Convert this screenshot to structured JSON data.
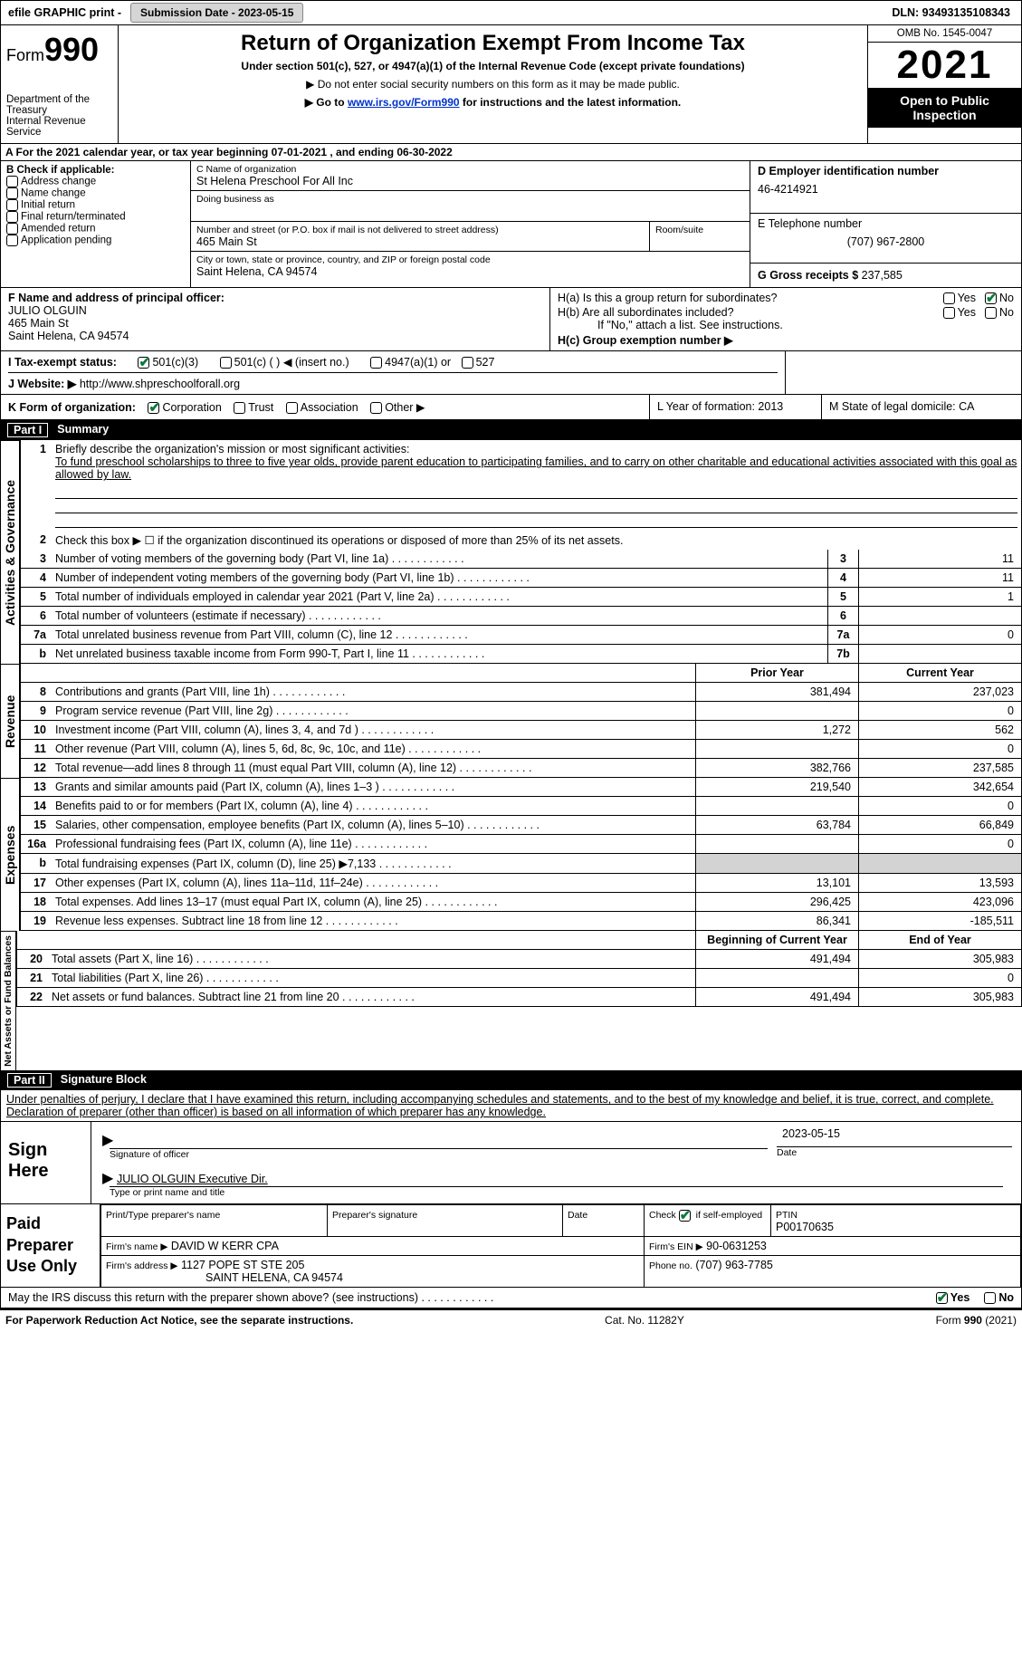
{
  "topbar": {
    "efile": "efile GRAPHIC print -",
    "subdate_label": "Submission Date - 2023-05-15",
    "dln_label": "DLN: 93493135108343"
  },
  "header": {
    "form_word": "Form",
    "form_num": "990",
    "dept": "Department of the Treasury",
    "irs": "Internal Revenue Service",
    "title": "Return of Organization Exempt From Income Tax",
    "sub1": "Under section 501(c), 527, or 4947(a)(1) of the Internal Revenue Code (except private foundations)",
    "sub2": "▶ Do not enter social security numbers on this form as it may be made public.",
    "sub3_pre": "▶ Go to ",
    "sub3_link": "www.irs.gov/Form990",
    "sub3_post": " for instructions and the latest information.",
    "omb": "OMB No. 1545-0047",
    "year": "2021",
    "open": "Open to Public Inspection"
  },
  "sectionA": "A For the 2021 calendar year, or tax year beginning 07-01-2021    , and ending 06-30-2022",
  "colB": {
    "title": "B Check if applicable:",
    "items": [
      "Address change",
      "Name change",
      "Initial return",
      "Final return/terminated",
      "Amended return",
      "Application pending"
    ]
  },
  "colC": {
    "name_lab": "C Name of organization",
    "name": "St Helena Preschool For All Inc",
    "dba_lab": "Doing business as",
    "addr_lab": "Number and street (or P.O. box if mail is not delivered to street address)",
    "room_lab": "Room/suite",
    "addr": "465 Main St",
    "city_lab": "City or town, state or province, country, and ZIP or foreign postal code",
    "city": "Saint Helena, CA  94574"
  },
  "colD": {
    "ein_lab": "D Employer identification number",
    "ein": "46-4214921",
    "tel_lab": "E Telephone number",
    "tel": "(707) 967-2800",
    "gross_lab": "G Gross receipts $",
    "gross": "237,585"
  },
  "rowF": {
    "lab": "F Name and address of principal officer:",
    "name": "JULIO OLGUIN",
    "addr1": "465 Main St",
    "addr2": "Saint Helena, CA  94574"
  },
  "rowH": {
    "ha": "H(a)  Is this a group return for subordinates?",
    "hb": "H(b)  Are all subordinates included?",
    "hb_note": "If \"No,\" attach a list. See instructions.",
    "hc": "H(c)  Group exemption number ▶",
    "yes": "Yes",
    "no": "No"
  },
  "rowI": {
    "lab": "I    Tax-exempt status:",
    "o1": "501(c)(3)",
    "o2": "501(c) (  ) ◀ (insert no.)",
    "o3": "4947(a)(1) or",
    "o4": "527"
  },
  "rowJ": {
    "lab": "J    Website: ▶",
    "url": "http://www.shpreschoolforall.org"
  },
  "rowK": {
    "lab": "K Form of organization:",
    "o1": "Corporation",
    "o2": "Trust",
    "o3": "Association",
    "o4": "Other ▶"
  },
  "rowL": {
    "lab": "L Year of formation: 2013"
  },
  "rowM": {
    "lab": "M State of legal domicile: CA"
  },
  "part1": {
    "num": "Part I",
    "title": "Summary"
  },
  "summary": {
    "l1_lab": "Briefly describe the organization's mission or most significant activities:",
    "l1_text": "To fund preschool scholarships to three to five year olds, provide parent education to participating families, and to carry on other charitable and educational activities associated with this goal as allowed by law.",
    "l2": "Check this box ▶ ☐  if the organization discontinued its operations or disposed of more than 25% of its net assets.",
    "rows_gov": [
      {
        "n": "3",
        "lab": "Number of voting members of the governing body (Part VI, line 1a)",
        "box": "3",
        "v": "11"
      },
      {
        "n": "4",
        "lab": "Number of independent voting members of the governing body (Part VI, line 1b)",
        "box": "4",
        "v": "11"
      },
      {
        "n": "5",
        "lab": "Total number of individuals employed in calendar year 2021 (Part V, line 2a)",
        "box": "5",
        "v": "1"
      },
      {
        "n": "6",
        "lab": "Total number of volunteers (estimate if necessary)",
        "box": "6",
        "v": ""
      },
      {
        "n": "7a",
        "lab": "Total unrelated business revenue from Part VIII, column (C), line 12",
        "box": "7a",
        "v": "0"
      },
      {
        "n": "b",
        "lab": "Net unrelated business taxable income from Form 990-T, Part I, line 11",
        "box": "7b",
        "v": ""
      }
    ],
    "col_prior": "Prior Year",
    "col_current": "Current Year",
    "rev": [
      {
        "n": "8",
        "lab": "Contributions and grants (Part VIII, line 1h)",
        "p": "381,494",
        "c": "237,023"
      },
      {
        "n": "9",
        "lab": "Program service revenue (Part VIII, line 2g)",
        "p": "",
        "c": "0"
      },
      {
        "n": "10",
        "lab": "Investment income (Part VIII, column (A), lines 3, 4, and 7d )",
        "p": "1,272",
        "c": "562"
      },
      {
        "n": "11",
        "lab": "Other revenue (Part VIII, column (A), lines 5, 6d, 8c, 9c, 10c, and 11e)",
        "p": "",
        "c": "0"
      },
      {
        "n": "12",
        "lab": "Total revenue—add lines 8 through 11 (must equal Part VIII, column (A), line 12)",
        "p": "382,766",
        "c": "237,585"
      }
    ],
    "exp": [
      {
        "n": "13",
        "lab": "Grants and similar amounts paid (Part IX, column (A), lines 1–3 )",
        "p": "219,540",
        "c": "342,654"
      },
      {
        "n": "14",
        "lab": "Benefits paid to or for members (Part IX, column (A), line 4)",
        "p": "",
        "c": "0"
      },
      {
        "n": "15",
        "lab": "Salaries, other compensation, employee benefits (Part IX, column (A), lines 5–10)",
        "p": "63,784",
        "c": "66,849"
      },
      {
        "n": "16a",
        "lab": "Professional fundraising fees (Part IX, column (A), line 11e)",
        "p": "",
        "c": "0"
      },
      {
        "n": "b",
        "lab": "Total fundraising expenses (Part IX, column (D), line 25) ▶7,133",
        "p": "GREY",
        "c": "GREY"
      },
      {
        "n": "17",
        "lab": "Other expenses (Part IX, column (A), lines 11a–11d, 11f–24e)",
        "p": "13,101",
        "c": "13,593"
      },
      {
        "n": "18",
        "lab": "Total expenses. Add lines 13–17 (must equal Part IX, column (A), line 25)",
        "p": "296,425",
        "c": "423,096"
      },
      {
        "n": "19",
        "lab": "Revenue less expenses. Subtract line 18 from line 12",
        "p": "86,341",
        "c": "-185,511"
      }
    ],
    "col_begin": "Beginning of Current Year",
    "col_end": "End of Year",
    "net": [
      {
        "n": "20",
        "lab": "Total assets (Part X, line 16)",
        "p": "491,494",
        "c": "305,983"
      },
      {
        "n": "21",
        "lab": "Total liabilities (Part X, line 26)",
        "p": "",
        "c": "0"
      },
      {
        "n": "22",
        "lab": "Net assets or fund balances. Subtract line 21 from line 20",
        "p": "491,494",
        "c": "305,983"
      }
    ]
  },
  "sides": {
    "gov": "Activities & Governance",
    "rev": "Revenue",
    "exp": "Expenses",
    "net": "Net Assets or Fund Balances"
  },
  "part2": {
    "num": "Part II",
    "title": "Signature Block"
  },
  "penalties": "Under penalties of perjury, I declare that I have examined this return, including accompanying schedules and statements, and to the best of my knowledge and belief, it is true, correct, and complete. Declaration of preparer (other than officer) is based on all information of which preparer has any knowledge.",
  "sign": {
    "here": "Sign Here",
    "sig_lab": "Signature of officer",
    "date_lab": "Date",
    "date": "2023-05-15",
    "name": "JULIO OLGUIN  Executive Dir.",
    "name_lab": "Type or print name and title"
  },
  "paid": {
    "title": "Paid Preparer Use Only",
    "h1": "Print/Type preparer's name",
    "h2": "Preparer's signature",
    "h3": "Date",
    "h4_pre": "Check ",
    "h4_post": " if self-employed",
    "h5": "PTIN",
    "ptin": "P00170635",
    "firm_lab": "Firm's name    ▶",
    "firm": "DAVID W KERR CPA",
    "ein_lab": "Firm's EIN ▶",
    "ein": "90-0631253",
    "addr_lab": "Firm's address ▶",
    "addr1": "1127 POPE ST STE 205",
    "addr2": "SAINT HELENA, CA  94574",
    "tel_lab": "Phone no.",
    "tel": "(707) 963-7785"
  },
  "discuss": {
    "q": "May the IRS discuss this return with the preparer shown above? (see instructions)",
    "yes": "Yes",
    "no": "No"
  },
  "footer": {
    "left": "For Paperwork Reduction Act Notice, see the separate instructions.",
    "mid": "Cat. No. 11282Y",
    "right": "Form 990 (2021)"
  }
}
